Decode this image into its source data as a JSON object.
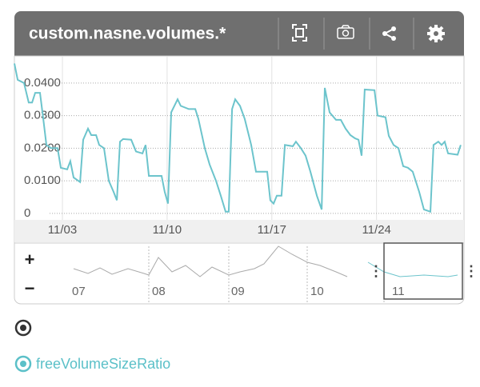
{
  "header": {
    "title": "custom.nasne.volumes.*"
  },
  "chart_data": {
    "type": "line",
    "x": [
      -3.21,
      -2.99,
      -2.57,
      -2.25,
      -2.03,
      -1.82,
      -1.5,
      -1.28,
      -1.07,
      -0.75,
      -0.32,
      -0.11,
      0.32,
      0.53,
      0.75,
      1.18,
      1.39,
      1.71,
      1.93,
      2.25,
      2.46,
      2.78,
      3.1,
      3.42,
      3.64,
      3.85,
      4.06,
      4.6,
      4.92,
      5.35,
      5.56,
      5.78,
      6.31,
      6.63,
      6.84,
      7.06,
      7.27,
      7.7,
      7.91,
      8.45,
      8.88,
      9.09,
      9.52,
      9.84,
      10.27,
      10.59,
      10.91,
      11.12,
      11.34,
      11.55,
      11.87,
      12.19,
      12.62,
      12.94,
      13.48,
      13.69,
      13.9,
      14.12,
      14.33,
      14.65,
      14.87,
      15.4,
      15.61,
      15.94,
      16.26,
      16.58,
      17.01,
      17.33,
      17.54,
      17.86,
      18.29,
      18.61,
      18.93,
      19.25,
      19.57,
      19.79,
      20.0,
      20.21,
      20.86,
      21.07,
      21.6,
      21.82,
      22.14,
      22.46,
      22.78,
      23.1,
      23.42,
      23.85,
      24.17,
      24.6,
      24.81,
      25.13,
      25.35,
      25.56,
      25.78,
      26.42,
      26.63
    ],
    "series": [
      {
        "name": "freeVolumeSizeRatio",
        "color": "#6cc4cc",
        "values": [
          0.046,
          0.041,
          0.04,
          0.034,
          0.034,
          0.037,
          0.037,
          0.029,
          0.021,
          0.02,
          0.02,
          0.014,
          0.0135,
          0.016,
          0.011,
          0.0096,
          0.0226,
          0.026,
          0.024,
          0.024,
          0.021,
          0.02,
          0.01,
          0.0066,
          0.004,
          0.022,
          0.0228,
          0.0226,
          0.019,
          0.0184,
          0.021,
          0.0115,
          0.0115,
          0.0115,
          0.0066,
          0.003,
          0.031,
          0.035,
          0.033,
          0.032,
          0.032,
          0.029,
          0.02,
          0.015,
          0.01,
          0.0054,
          0.0005,
          0.0005,
          0.032,
          0.035,
          0.033,
          0.029,
          0.021,
          0.0128,
          0.0128,
          0.0128,
          0.004,
          0.003,
          0.0054,
          0.0054,
          0.021,
          0.0206,
          0.022,
          0.02,
          0.0177,
          0.0128,
          0.0054,
          0.0012,
          0.0385,
          0.031,
          0.0287,
          0.0287,
          0.026,
          0.024,
          0.023,
          0.0226,
          0.0177,
          0.038,
          0.0378,
          0.03,
          0.0295,
          0.0238,
          0.021,
          0.02,
          0.0145,
          0.014,
          0.0128,
          0.0066,
          0.0012,
          0.0005,
          0.021,
          0.022,
          0.021,
          0.022,
          0.0184,
          0.018,
          0.021
        ]
      }
    ],
    "xlim": [
      -3.21,
      26.74
    ],
    "xticks": [
      {
        "value": 0,
        "label": "11/03"
      },
      {
        "value": 7,
        "label": "11/10"
      },
      {
        "value": 14,
        "label": "11/17"
      },
      {
        "value": 21,
        "label": "11/24"
      }
    ],
    "ylim": [
      -0.002,
      0.0483
    ],
    "yticks": [
      0,
      {
        "value": 0.01,
        "label": "0.0100"
      },
      {
        "value": 0.02,
        "label": "0.0200"
      },
      {
        "value": 0.03,
        "label": "0.0300"
      },
      {
        "value": 0.04,
        "label": "0.0400"
      }
    ],
    "grid": true
  },
  "navigator": {
    "zoom_in": "+",
    "zoom_out": "−",
    "labels": [
      "07",
      "08",
      "09",
      "10",
      "11"
    ]
  }
}
